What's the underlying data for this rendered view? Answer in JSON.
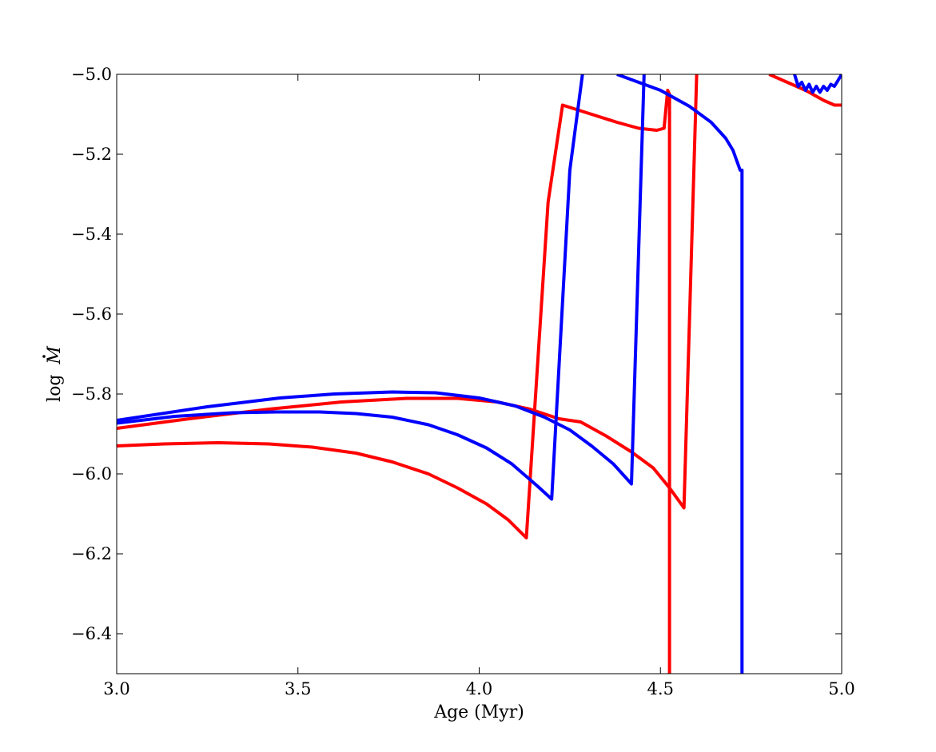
{
  "chart_data": {
    "type": "line",
    "title": "",
    "xlabel": "Age (Myr)",
    "ylabel_prefix": "log",
    "ylabel_symbol": "M",
    "xlim": [
      3.0,
      5.0
    ],
    "ylim": [
      -6.5,
      -5.0
    ],
    "xticks": [
      3.0,
      3.5,
      4.0,
      4.5,
      5.0
    ],
    "xtick_labels": [
      "3.0",
      "3.5",
      "4.0",
      "4.5",
      "5.0"
    ],
    "yticks": [
      -5.0,
      -5.2,
      -5.4,
      -5.6,
      -5.8,
      -6.0,
      -6.2,
      -6.4
    ],
    "ytick_labels": [
      "−5.0",
      "−5.2",
      "−5.4",
      "−5.6",
      "−5.8",
      "−6.0",
      "−6.2",
      "−6.4"
    ],
    "grid": false,
    "legend": "none",
    "series": [
      {
        "color": "#ff0000",
        "x": [
          3.0,
          3.13,
          3.28,
          3.42,
          3.54,
          3.66,
          3.76,
          3.86,
          3.94,
          4.02,
          4.08,
          4.13,
          4.19,
          4.23,
          4.31,
          4.38,
          4.44,
          4.49,
          4.51,
          4.52,
          4.525,
          4.525
        ],
        "y": [
          -5.93,
          -5.925,
          -5.922,
          -5.925,
          -5.933,
          -5.948,
          -5.97,
          -6.0,
          -6.035,
          -6.075,
          -6.115,
          -6.16,
          -5.32,
          -5.077,
          -5.1,
          -5.12,
          -5.135,
          -5.14,
          -5.135,
          -5.04,
          -5.05,
          -6.5
        ]
      },
      {
        "color": "#ff0000",
        "x": [
          3.0,
          3.2,
          3.42,
          3.62,
          3.8,
          3.94,
          4.05,
          4.14,
          4.22,
          4.28,
          4.35,
          4.42,
          4.48,
          4.525,
          4.565,
          4.6
        ],
        "y": [
          -5.886,
          -5.862,
          -5.838,
          -5.82,
          -5.811,
          -5.811,
          -5.82,
          -5.838,
          -5.862,
          -5.87,
          -5.905,
          -5.945,
          -5.985,
          -6.035,
          -6.085,
          -5.0
        ]
      },
      {
        "color": "#ff0000",
        "x": [
          4.8,
          4.85,
          4.9,
          4.95,
          4.98,
          5.0
        ],
        "y": [
          -5.0,
          -5.02,
          -5.04,
          -5.065,
          -5.077,
          -5.077
        ]
      },
      {
        "color": "#0000ff",
        "x": [
          3.0,
          3.16,
          3.32,
          3.44,
          3.56,
          3.66,
          3.76,
          3.86,
          3.94,
          4.02,
          4.09,
          4.16,
          4.2,
          4.25,
          4.285
        ],
        "y": [
          -5.873,
          -5.856,
          -5.847,
          -5.845,
          -5.845,
          -5.849,
          -5.858,
          -5.877,
          -5.902,
          -5.935,
          -5.975,
          -6.03,
          -6.063,
          -5.24,
          -5.0
        ]
      },
      {
        "color": "#0000ff",
        "x": [
          3.0,
          3.25,
          3.45,
          3.6,
          3.76,
          3.88,
          4.0,
          4.1,
          4.18,
          4.25,
          4.31,
          4.37,
          4.42,
          4.455
        ],
        "y": [
          -5.866,
          -5.832,
          -5.81,
          -5.8,
          -5.795,
          -5.797,
          -5.81,
          -5.83,
          -5.858,
          -5.89,
          -5.93,
          -5.975,
          -6.025,
          -5.0
        ]
      },
      {
        "color": "#0000ff",
        "x": [
          4.38,
          4.5,
          4.58,
          4.64,
          4.68,
          4.7,
          4.72,
          4.725,
          4.725
        ],
        "y": [
          -5.0,
          -5.04,
          -5.08,
          -5.12,
          -5.16,
          -5.19,
          -5.24,
          -5.24,
          -6.5
        ]
      },
      {
        "color": "#0000ff",
        "x": [
          4.87,
          4.88,
          4.89,
          4.9,
          4.91,
          4.92,
          4.93,
          4.94,
          4.95,
          4.96,
          4.97,
          4.98,
          4.99,
          5.0
        ],
        "y": [
          -5.0,
          -5.03,
          -5.02,
          -5.04,
          -5.025,
          -5.045,
          -5.03,
          -5.045,
          -5.03,
          -5.04,
          -5.025,
          -5.03,
          -5.015,
          -5.0
        ]
      }
    ]
  }
}
